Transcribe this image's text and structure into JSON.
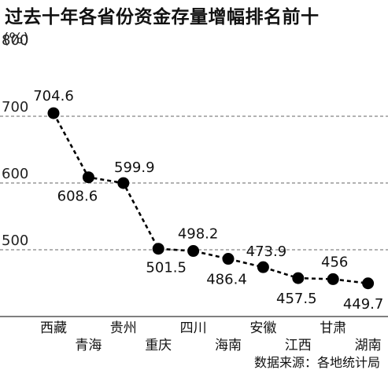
{
  "title": "过去十年各省份资金存量增幅排名前十",
  "source": "数据来源：各地统计局",
  "chart_data": {
    "type": "line",
    "title": "过去十年各省份资金存量增幅排名前十",
    "ylabel": "(%)",
    "xlabel": "",
    "ylim": [
      400,
      800
    ],
    "yticks": [
      500,
      600,
      700,
      800
    ],
    "grid": true,
    "categories": [
      "西藏",
      "青海",
      "贵州",
      "重庆",
      "四川",
      "海南",
      "安徽",
      "江西",
      "甘肃",
      "湖南"
    ],
    "values": [
      704.6,
      608.6,
      599.9,
      501.5,
      498.2,
      486.4,
      473.9,
      457.5,
      456,
      449.7
    ],
    "value_labels": [
      "704.6",
      "608.6",
      "599.9",
      "501.5",
      "498.2",
      "486.4",
      "473.9",
      "457.5",
      "456",
      "449.7"
    ],
    "line_style": "dashed",
    "marker": "circle",
    "color": "#000000"
  }
}
